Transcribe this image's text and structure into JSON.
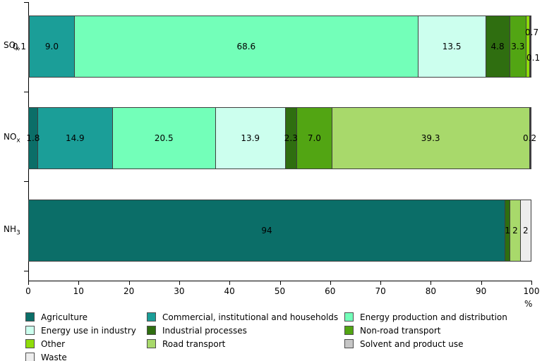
{
  "chart_data": {
    "type": "bar",
    "orientation": "horizontal",
    "stacked": true,
    "title": "",
    "unit": "%",
    "x_axis": {
      "min": 0,
      "max": 100,
      "tick_step": 10,
      "tick_labels": [
        "0",
        "10",
        "20",
        "30",
        "40",
        "50",
        "60",
        "70",
        "80",
        "90",
        "100"
      ],
      "unit_label": "%"
    },
    "categories": [
      "SOx",
      "NOx",
      "NH3"
    ],
    "category_labels": [
      {
        "base": "SO",
        "sub": "x"
      },
      {
        "base": "NO",
        "sub": "x"
      },
      {
        "base": "NH",
        "sub": "3"
      }
    ],
    "series": [
      {
        "name": "Agriculture",
        "color": "#0B6E68",
        "values": [
          0.1,
          1.8,
          94
        ]
      },
      {
        "name": "Commercial, institutional and households",
        "color": "#1B9E98",
        "values": [
          9.0,
          14.9,
          0
        ]
      },
      {
        "name": "Energy production and distribution",
        "color": "#73FFB9",
        "values": [
          68.6,
          20.5,
          0
        ]
      },
      {
        "name": "Energy use in industry",
        "color": "#CCFFEE",
        "values": [
          13.5,
          13.9,
          0
        ]
      },
      {
        "name": "Industrial processes",
        "color": "#2F6E10",
        "values": [
          4.8,
          2.3,
          1
        ]
      },
      {
        "name": "Non-road transport",
        "color": "#52A513",
        "values": [
          3.3,
          7.0,
          0
        ]
      },
      {
        "name": "Other",
        "color": "#8FDC0A",
        "values": [
          0.7,
          0,
          0
        ]
      },
      {
        "name": "Road transport",
        "color": "#A8D96B",
        "values": [
          0.1,
          39.3,
          2
        ]
      },
      {
        "name": "Solvent and product use",
        "color": "#C6C6C6",
        "values": [
          0,
          0,
          0
        ]
      },
      {
        "name": "Waste",
        "color": "#EDEDED",
        "values": [
          0,
          0.2,
          2
        ]
      }
    ],
    "rows": [
      {
        "category": "SOx",
        "segments": [
          {
            "series": 0,
            "value": 0.1,
            "label": "0.1",
            "placement": "outside-left"
          },
          {
            "series": 1,
            "value": 9.0,
            "label": "9.0",
            "placement": "inside"
          },
          {
            "series": 2,
            "value": 68.6,
            "label": "68.6",
            "placement": "inside"
          },
          {
            "series": 3,
            "value": 13.5,
            "label": "13.5",
            "placement": "inside"
          },
          {
            "series": 4,
            "value": 4.8,
            "label": "4.8",
            "placement": "inside"
          },
          {
            "series": 5,
            "value": 3.3,
            "label": "3.3",
            "placement": "inside"
          },
          {
            "series": 6,
            "value": 0.7,
            "label": "0.7",
            "placement": "outside-right-up"
          },
          {
            "series": 7,
            "value": 0.1,
            "label": "0.1",
            "placement": "outside-right-down"
          }
        ]
      },
      {
        "category": "NOx",
        "segments": [
          {
            "series": 0,
            "value": 1.8,
            "label": "1.8",
            "placement": "inside"
          },
          {
            "series": 1,
            "value": 14.9,
            "label": "14.9",
            "placement": "inside"
          },
          {
            "series": 2,
            "value": 20.5,
            "label": "20.5",
            "placement": "inside"
          },
          {
            "series": 3,
            "value": 13.9,
            "label": "13.9",
            "placement": "inside"
          },
          {
            "series": 4,
            "value": 2.3,
            "label": "2.3",
            "placement": "inside"
          },
          {
            "series": 5,
            "value": 7.0,
            "label": "7.0",
            "placement": "inside"
          },
          {
            "series": 7,
            "value": 39.3,
            "label": "39.3",
            "placement": "inside"
          },
          {
            "series": 9,
            "value": 0.2,
            "label": "0.2",
            "placement": "outside-right-edge"
          }
        ]
      },
      {
        "category": "NH3",
        "segments": [
          {
            "series": 0,
            "value": 94,
            "label": "94",
            "placement": "inside"
          },
          {
            "series": 4,
            "value": 1,
            "label": "1",
            "placement": "inside"
          },
          {
            "series": 7,
            "value": 2,
            "label": "2",
            "placement": "inside"
          },
          {
            "series": 9,
            "value": 2,
            "label": "2",
            "placement": "inside"
          }
        ]
      }
    ],
    "legend": {
      "position": "bottom",
      "columns": 3,
      "items": [
        "Agriculture",
        "Commercial, institutional and households",
        "Energy production and distribution",
        "Energy use in industry",
        "Industrial processes",
        "Non-road transport",
        "Other",
        "Road transport",
        "Solvent and product use",
        "Waste"
      ]
    }
  },
  "colors": {
    "axis": "#000000",
    "segment_border": "#3F3F3F",
    "background": "#FFFFFF",
    "text": "#000000"
  }
}
